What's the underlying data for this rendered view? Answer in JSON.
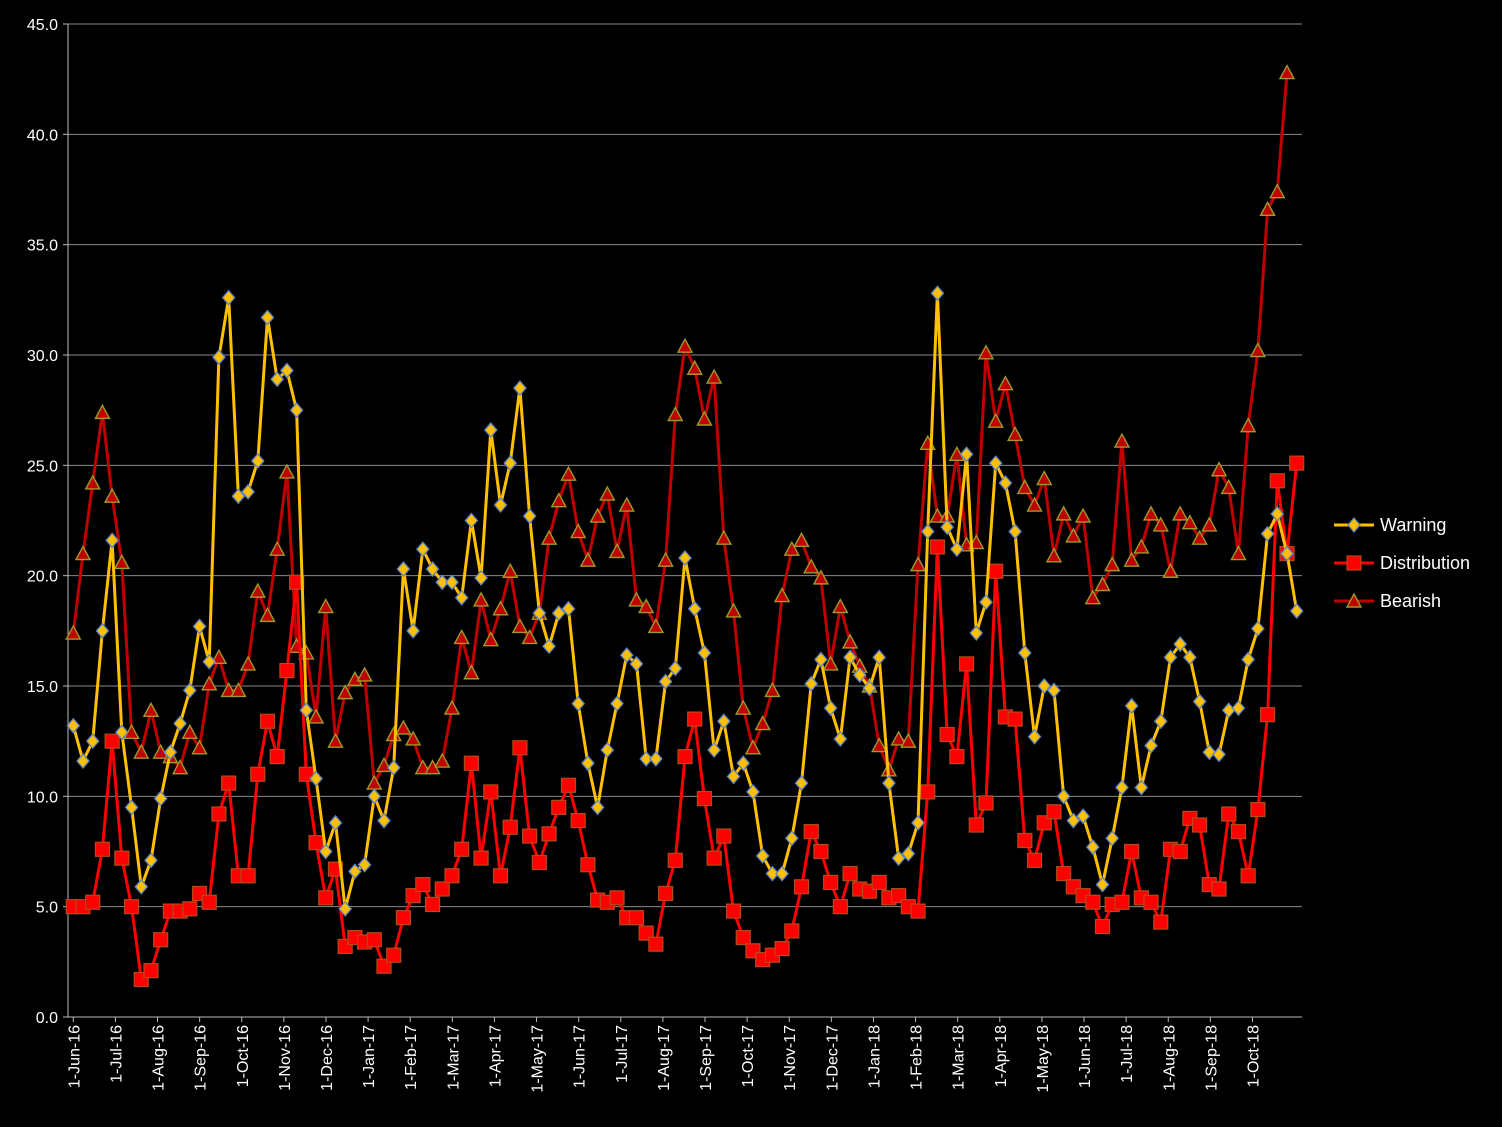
{
  "chart_data": {
    "type": "line",
    "title": "",
    "xlabel": "",
    "ylabel": "",
    "ylim": [
      0,
      45
    ],
    "y_ticks": [
      "0.0",
      "5.0",
      "10.0",
      "15.0",
      "20.0",
      "25.0",
      "30.0",
      "35.0",
      "40.0",
      "45.0"
    ],
    "x_tick_labels": [
      "1-Jun-16",
      "1-Jul-16",
      "1-Aug-16",
      "1-Sep-16",
      "1-Oct-16",
      "1-Nov-16",
      "1-Dec-16",
      "1-Jan-17",
      "1-Feb-17",
      "1-Mar-17",
      "1-Apr-17",
      "1-May-17",
      "1-Jun-17",
      "1-Jul-17",
      "1-Aug-17",
      "1-Sep-17",
      "1-Oct-17",
      "1-Nov-17",
      "1-Dec-17",
      "1-Jan-18",
      "1-Feb-18",
      "1-Mar-18",
      "1-Apr-18",
      "1-May-18",
      "1-Jun-18",
      "1-Jul-18",
      "1-Aug-18",
      "1-Sep-18",
      "1-Oct-18"
    ],
    "grid": true,
    "legend_position": "right",
    "background": "#000000",
    "series": [
      {
        "name": "Warning",
        "color": "#FFC000",
        "marker": "diamond",
        "values": [
          13.2,
          11.6,
          12.5,
          17.5,
          21.6,
          12.9,
          9.5,
          5.9,
          7.1,
          9.9,
          12.0,
          13.3,
          14.8,
          17.7,
          16.1,
          29.9,
          32.6,
          23.6,
          23.8,
          25.2,
          31.7,
          28.9,
          29.3,
          27.5,
          13.9,
          10.8,
          7.5,
          8.8,
          4.9,
          6.6,
          6.9,
          10.0,
          8.9,
          11.3,
          20.3,
          17.5,
          21.2,
          20.3,
          19.7,
          19.7,
          19.0,
          22.5,
          19.9,
          26.6,
          23.2,
          25.1,
          28.5,
          22.7,
          18.3,
          16.8,
          18.3,
          18.5,
          14.2,
          11.5,
          9.5,
          12.1,
          14.2,
          16.4,
          16.0,
          11.7,
          11.7,
          15.2,
          15.8,
          20.8,
          18.5,
          16.5,
          12.1,
          13.4,
          10.9,
          11.5,
          10.2,
          7.3,
          6.5,
          6.5,
          8.1,
          10.6,
          15.1,
          16.2,
          14.0,
          12.6,
          16.3,
          15.5,
          14.9,
          16.3,
          10.6,
          7.2,
          7.4,
          8.8,
          22.0,
          32.8,
          22.2,
          21.2,
          25.5,
          17.4,
          18.8,
          25.1,
          24.2,
          22.0,
          16.5,
          12.7,
          15.0,
          14.8,
          10.0,
          8.9,
          9.1,
          7.7,
          6.0,
          8.1,
          10.4,
          14.1,
          10.4,
          12.3,
          13.4,
          16.3,
          16.9,
          16.3,
          14.3,
          12.0,
          11.9,
          13.9,
          14.0,
          16.2,
          17.6,
          21.9,
          22.8,
          21.0,
          18.4
        ]
      },
      {
        "name": "Distribution",
        "color": "#FF0000",
        "marker": "square",
        "values": [
          5.0,
          5.0,
          5.2,
          7.6,
          12.5,
          7.2,
          5.0,
          1.7,
          2.1,
          3.5,
          4.8,
          4.8,
          4.9,
          5.6,
          5.2,
          9.2,
          10.6,
          6.4,
          6.4,
          11.0,
          13.4,
          11.8,
          15.7,
          19.7,
          11.0,
          7.9,
          5.4,
          6.7,
          3.2,
          3.6,
          3.4,
          3.5,
          2.3,
          2.8,
          4.5,
          5.5,
          6.0,
          5.1,
          5.8,
          6.4,
          7.6,
          11.5,
          7.2,
          10.2,
          6.4,
          8.6,
          12.2,
          8.2,
          7.0,
          8.3,
          9.5,
          10.5,
          8.9,
          6.9,
          5.3,
          5.2,
          5.4,
          4.5,
          4.5,
          3.8,
          3.3,
          5.6,
          7.1,
          11.8,
          13.5,
          9.9,
          7.2,
          8.2,
          4.8,
          3.6,
          3.0,
          2.6,
          2.8,
          3.1,
          3.9,
          5.9,
          8.4,
          7.5,
          6.1,
          5.0,
          6.5,
          5.8,
          5.7,
          6.1,
          5.4,
          5.5,
          5.0,
          4.8,
          10.2,
          21.3,
          12.8,
          11.8,
          16.0,
          8.7,
          9.7,
          20.2,
          13.6,
          13.5,
          8.0,
          7.1,
          8.8,
          9.3,
          6.5,
          5.9,
          5.5,
          5.2,
          4.1,
          5.1,
          5.2,
          7.5,
          5.4,
          5.2,
          4.3,
          7.6,
          7.5,
          9.0,
          8.7,
          6.0,
          5.8,
          9.2,
          8.4,
          6.4,
          9.4,
          13.7,
          24.3,
          21.0,
          25.1
        ]
      },
      {
        "name": "Bearish",
        "color": "#C00000",
        "marker": "triangle",
        "values": [
          17.4,
          21.0,
          24.2,
          27.4,
          23.6,
          20.6,
          12.9,
          12.0,
          13.9,
          12.0,
          11.8,
          11.3,
          12.9,
          12.2,
          15.1,
          16.3,
          14.8,
          14.8,
          16.0,
          19.3,
          18.2,
          21.2,
          24.7,
          16.8,
          16.5,
          13.6,
          18.6,
          12.5,
          14.7,
          15.3,
          15.5,
          10.6,
          11.4,
          12.8,
          13.1,
          12.6,
          11.3,
          11.3,
          11.6,
          14.0,
          17.2,
          15.6,
          18.9,
          17.1,
          18.5,
          20.2,
          17.7,
          17.2,
          18.3,
          21.7,
          23.4,
          24.6,
          22.0,
          20.7,
          22.7,
          23.7,
          21.1,
          23.2,
          18.9,
          18.6,
          17.7,
          20.7,
          27.3,
          30.4,
          29.4,
          27.1,
          29.0,
          21.7,
          18.4,
          14.0,
          12.2,
          13.3,
          14.8,
          19.1,
          21.2,
          21.6,
          20.4,
          19.9,
          16.0,
          18.6,
          17.0,
          15.9,
          15.0,
          12.3,
          11.2,
          12.6,
          12.5,
          20.5,
          26.0,
          22.7,
          22.7,
          25.5,
          21.4,
          21.5,
          30.1,
          27.0,
          28.7,
          26.4,
          24.0,
          23.2,
          24.4,
          20.9,
          22.8,
          21.8,
          22.7,
          19.0,
          19.6,
          20.5,
          26.1,
          20.7,
          21.3,
          22.8,
          22.3,
          20.2,
          22.8,
          22.4,
          21.7,
          22.3,
          24.8,
          24.0,
          21.0,
          26.8,
          30.2,
          36.6,
          37.4,
          42.8
        ]
      }
    ]
  }
}
